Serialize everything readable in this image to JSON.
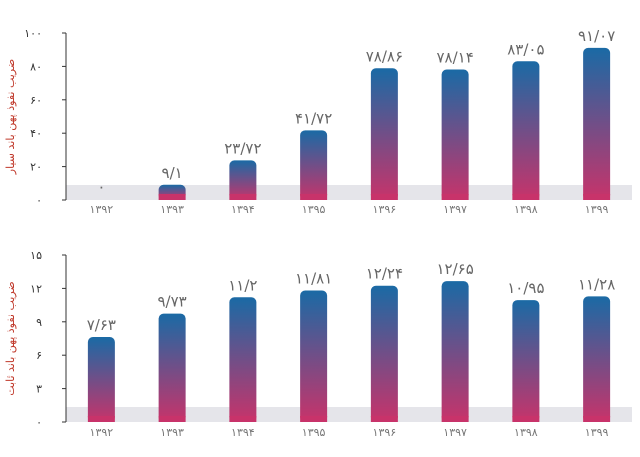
{
  "chart_data": [
    {
      "type": "bar",
      "title": "",
      "xlabel": "",
      "ylabel": "ضریب نفوذ پهن باند سیار",
      "ylim": [
        0,
        100
      ],
      "yticks": [
        "۰",
        "۲۰",
        "۴۰",
        "۶۰",
        "۸۰",
        "۱۰۰"
      ],
      "categories": [
        "۱۳۹۲",
        "۱۳۹۳",
        "۱۳۹۴",
        "۱۳۹۵",
        "۱۳۹۶",
        "۱۳۹۷",
        "۱۳۹۸",
        "۱۳۹۹"
      ],
      "values": [
        0,
        9.1,
        23.72,
        41.72,
        78.86,
        78.14,
        83.05,
        91.07
      ],
      "value_labels": [
        "۰",
        "۹/۱",
        "۲۳/۷۲",
        "۴۱/۷۲",
        "۷۸/۸۶",
        "۷۸/۱۴",
        "۸۳/۰۵",
        "۹۱/۰۷"
      ],
      "gradient_top": "#1a6aa5",
      "gradient_bottom": "#c8336a",
      "baseline_band": "#e5e5ea"
    },
    {
      "type": "bar",
      "title": "",
      "xlabel": "",
      "ylabel": "ضریب نفوذ پهن باند ثابت",
      "ylim": [
        0,
        15
      ],
      "yticks": [
        "۰",
        "۳",
        "۶",
        "۹",
        "۱۲",
        "۱۵"
      ],
      "categories": [
        "۱۳۹۲",
        "۱۳۹۳",
        "۱۳۹۴",
        "۱۳۹۵",
        "۱۳۹۶",
        "۱۳۹۷",
        "۱۳۹۸",
        "۱۳۹۹"
      ],
      "values": [
        7.63,
        9.73,
        11.2,
        11.81,
        12.24,
        12.65,
        10.95,
        11.28
      ],
      "value_labels": [
        "۷/۶۳",
        "۹/۷۳",
        "۱۱/۲",
        "۱۱/۸۱",
        "۱۲/۲۴",
        "۱۲/۶۵",
        "۱۰/۹۵",
        "۱۱/۲۸"
      ],
      "gradient_top": "#1a6aa5",
      "gradient_bottom": "#c8336a",
      "baseline_band": "#e5e5ea"
    }
  ]
}
